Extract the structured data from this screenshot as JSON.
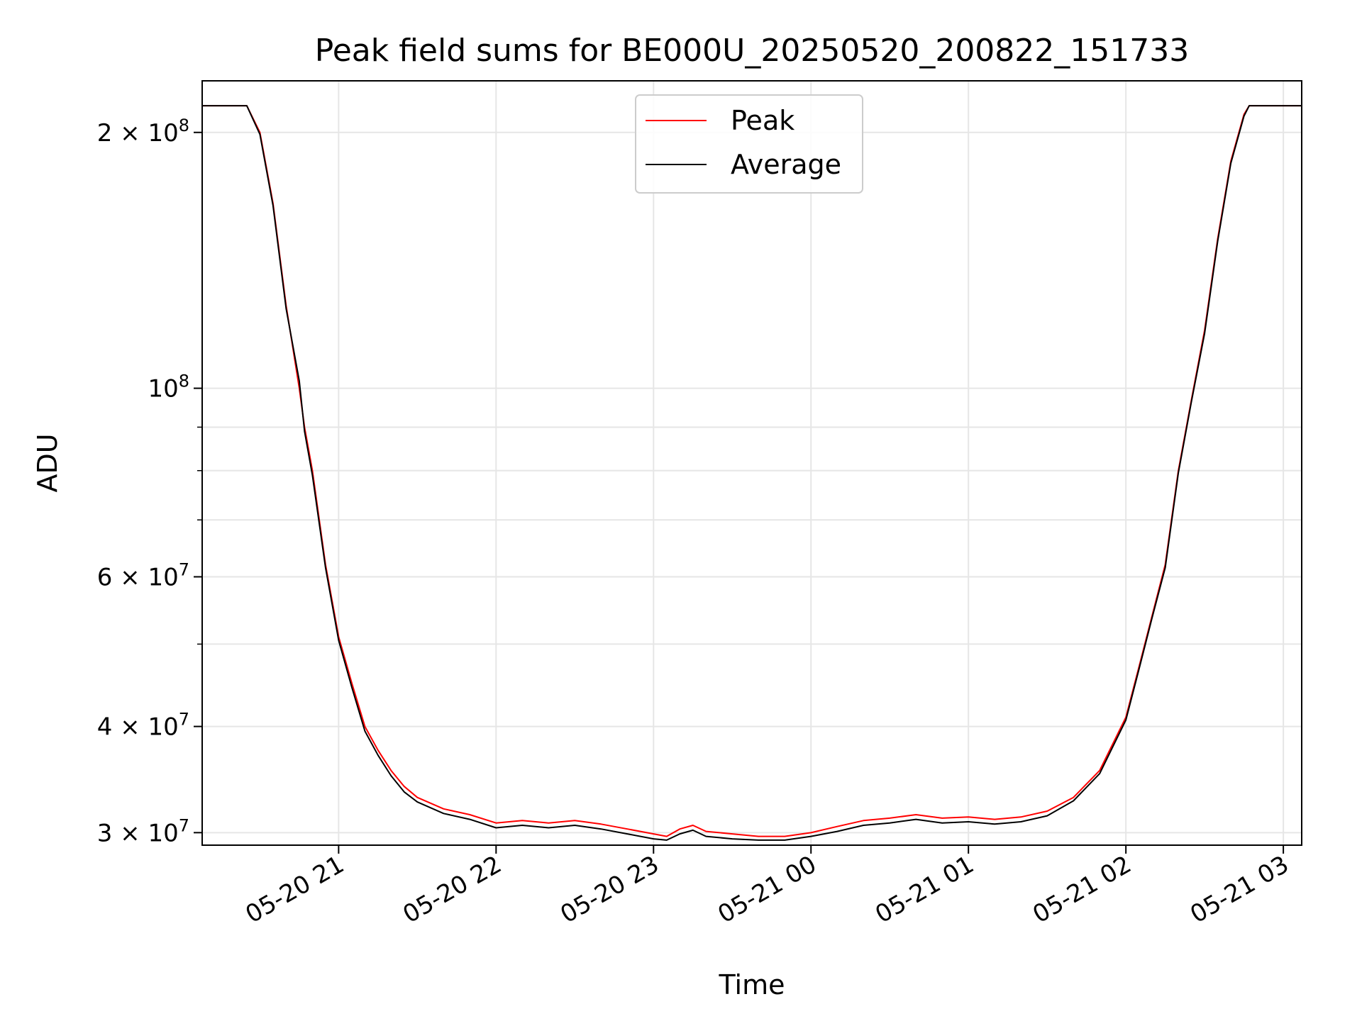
{
  "chart_data": {
    "type": "line",
    "title": "Peak field sums for BE000U_20250520_200822_151733",
    "xlabel": "Time",
    "ylabel": "ADU",
    "yscale": "log",
    "ylim": [
      29000000,
      230000000
    ],
    "xlim": [
      "05-20 20:08",
      "05-21 03:07"
    ],
    "grid": true,
    "legend_position": "top-center",
    "x_ticks": [
      {
        "time": "05-20 21:00",
        "label": "05-20 21"
      },
      {
        "time": "05-20 22:00",
        "label": "05-20 22"
      },
      {
        "time": "05-20 23:00",
        "label": "05-20 23"
      },
      {
        "time": "05-21 00:00",
        "label": "05-21 00"
      },
      {
        "time": "05-21 01:00",
        "label": "05-21 01"
      },
      {
        "time": "05-21 02:00",
        "label": "05-21 02"
      },
      {
        "time": "05-21 03:00",
        "label": "05-21 03"
      }
    ],
    "y_major_ticks": [
      {
        "value": 30000000,
        "mantissa": "3",
        "exp": "7"
      },
      {
        "value": 40000000,
        "mantissa": "4",
        "exp": "7"
      },
      {
        "value": 60000000,
        "mantissa": "6",
        "exp": "7"
      },
      {
        "value": 100000000,
        "mantissa": "",
        "exp": "8"
      },
      {
        "value": 200000000,
        "mantissa": "2",
        "exp": "8"
      }
    ],
    "y_minor_ticks": [
      50000000,
      70000000,
      80000000,
      90000000
    ],
    "series": [
      {
        "name": "Peak",
        "color": "#ff0000",
        "x": [
          "05-20 20:08",
          "05-20 20:25",
          "05-20 20:30",
          "05-20 20:35",
          "05-20 20:40",
          "05-20 20:45",
          "05-20 20:47",
          "05-20 20:50",
          "05-20 20:55",
          "05-20 21:00",
          "05-20 21:05",
          "05-20 21:10",
          "05-20 21:15",
          "05-20 21:20",
          "05-20 21:25",
          "05-20 21:30",
          "05-20 21:40",
          "05-20 21:50",
          "05-20 22:00",
          "05-20 22:10",
          "05-20 22:20",
          "05-20 22:30",
          "05-20 22:40",
          "05-20 22:50",
          "05-20 23:00",
          "05-20 23:05",
          "05-20 23:10",
          "05-20 23:15",
          "05-20 23:20",
          "05-20 23:30",
          "05-20 23:40",
          "05-20 23:50",
          "05-21 00:00",
          "05-21 00:10",
          "05-21 00:20",
          "05-21 00:30",
          "05-21 00:40",
          "05-21 00:50",
          "05-21 01:00",
          "05-21 01:10",
          "05-21 01:20",
          "05-21 01:30",
          "05-21 01:40",
          "05-21 01:50",
          "05-21 02:00",
          "05-21 02:05",
          "05-21 02:10",
          "05-21 02:15",
          "05-21 02:20",
          "05-21 02:25",
          "05-21 02:30",
          "05-21 02:35",
          "05-21 02:40",
          "05-21 02:45",
          "05-21 02:47",
          "05-21 03:07"
        ],
        "y": [
          215000000,
          215000000,
          200000000,
          165000000,
          125000000,
          100000000,
          90000000,
          80000000,
          62000000,
          51000000,
          45000000,
          40000000,
          37500000,
          35500000,
          34000000,
          33000000,
          32000000,
          31500000,
          30800000,
          31000000,
          30800000,
          31000000,
          30700000,
          30300000,
          29900000,
          29700000,
          30300000,
          30600000,
          30100000,
          29900000,
          29700000,
          29700000,
          30000000,
          30500000,
          31000000,
          31200000,
          31500000,
          31200000,
          31300000,
          31100000,
          31300000,
          31800000,
          33000000,
          35500000,
          41000000,
          47000000,
          54000000,
          62000000,
          80000000,
          97000000,
          117000000,
          150000000,
          185000000,
          210000000,
          215000000,
          215000000
        ]
      },
      {
        "name": "Average",
        "color": "#000000",
        "x": [
          "05-20 20:08",
          "05-20 20:25",
          "05-20 20:30",
          "05-20 20:35",
          "05-20 20:40",
          "05-20 20:45",
          "05-20 20:47",
          "05-20 20:50",
          "05-20 20:55",
          "05-20 21:00",
          "05-20 21:05",
          "05-20 21:10",
          "05-20 21:15",
          "05-20 21:20",
          "05-20 21:25",
          "05-20 21:30",
          "05-20 21:40",
          "05-20 21:50",
          "05-20 22:00",
          "05-20 22:10",
          "05-20 22:20",
          "05-20 22:30",
          "05-20 22:40",
          "05-20 22:50",
          "05-20 23:00",
          "05-20 23:05",
          "05-20 23:10",
          "05-20 23:15",
          "05-20 23:20",
          "05-20 23:30",
          "05-20 23:40",
          "05-20 23:50",
          "05-21 00:00",
          "05-21 00:10",
          "05-21 00:20",
          "05-21 00:30",
          "05-21 00:40",
          "05-21 00:50",
          "05-21 01:00",
          "05-21 01:10",
          "05-21 01:20",
          "05-21 01:30",
          "05-21 01:40",
          "05-21 01:50",
          "05-21 02:00",
          "05-21 02:05",
          "05-21 02:10",
          "05-21 02:15",
          "05-21 02:20",
          "05-21 02:25",
          "05-21 02:30",
          "05-21 02:35",
          "05-21 02:40",
          "05-21 02:45",
          "05-21 02:47",
          "05-21 03:07"
        ],
        "y": [
          215000000,
          215000000,
          199000000,
          164000000,
          124000000,
          102000000,
          89000000,
          79000000,
          61500000,
          50500000,
          44500000,
          39500000,
          37000000,
          35000000,
          33500000,
          32600000,
          31600000,
          31100000,
          30400000,
          30600000,
          30400000,
          30600000,
          30300000,
          29900000,
          29500000,
          29400000,
          29900000,
          30200000,
          29700000,
          29500000,
          29400000,
          29400000,
          29700000,
          30100000,
          30600000,
          30800000,
          31100000,
          30800000,
          30900000,
          30700000,
          30900000,
          31400000,
          32700000,
          35200000,
          40700000,
          46700000,
          53700000,
          61500000,
          79500000,
          96500000,
          116000000,
          149000000,
          184000000,
          209000000,
          215000000,
          215000000
        ]
      }
    ]
  }
}
